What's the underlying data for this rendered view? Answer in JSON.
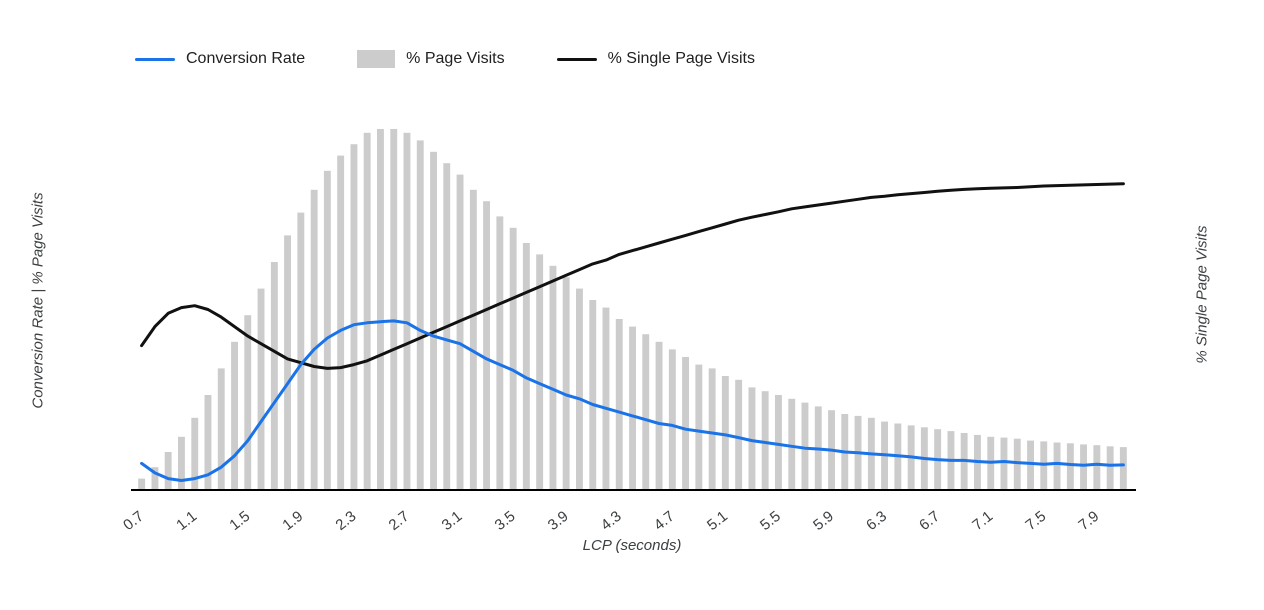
{
  "legend": {
    "items": [
      {
        "label": "Conversion Rate",
        "type": "line",
        "color": "#1a73e8"
      },
      {
        "label": "% Page Visits",
        "type": "bar",
        "color": "#cccccc"
      },
      {
        "label": "% Single Page Visits",
        "type": "line",
        "color": "#111111"
      }
    ]
  },
  "axes": {
    "x_label": "LCP (seconds)",
    "y_left_label": "Conversion Rate | % Page Visits",
    "y_right_label": "% Single Page Visits"
  },
  "chart_data": {
    "type": "bar",
    "subtype": "combo-bar-and-lines",
    "x_start": 0.7,
    "x_step": 0.1,
    "x_tick_labels": [
      "0.7",
      "1.1",
      "1.5",
      "1.9",
      "2.3",
      "2.7",
      "3.1",
      "3.5",
      "3.9",
      "4.3",
      "4.7",
      "5.1",
      "5.5",
      "5.9",
      "6.3",
      "6.7",
      "7.1",
      "7.5",
      "7.9"
    ],
    "xlabel": "LCP (seconds)",
    "ylabel_left": "Conversion Rate | % Page Visits",
    "ylabel_right": "% Single Page Visits",
    "ylim": [
      0,
      100
    ],
    "grid": false,
    "legend_position": "top-left",
    "value_units": "percent of plot height (no numeric y ticks shown)",
    "series": [
      {
        "name": "% Page Visits",
        "type": "bar",
        "color": "#cccccc",
        "values": [
          3,
          6,
          10,
          14,
          19,
          25,
          32,
          39,
          46,
          53,
          60,
          67,
          73,
          79,
          84,
          88,
          91,
          94,
          95,
          95,
          94,
          92,
          89,
          86,
          83,
          79,
          76,
          72,
          69,
          65,
          62,
          59,
          56,
          53,
          50,
          48,
          45,
          43,
          41,
          39,
          37,
          35,
          33,
          32,
          30,
          29,
          27,
          26,
          25,
          24,
          23,
          22,
          21,
          20,
          19.5,
          19,
          18,
          17.5,
          17,
          16.5,
          16,
          15.5,
          15,
          14.5,
          14,
          13.8,
          13.5,
          13,
          12.8,
          12.5,
          12.3,
          12,
          11.8,
          11.5,
          11.3
        ]
      },
      {
        "name": "Conversion Rate",
        "type": "line",
        "color": "#1a73e8",
        "values": [
          7,
          4.5,
          3,
          2.5,
          3,
          4,
          6,
          9,
          13,
          18,
          23,
          28,
          33,
          37,
          40,
          42,
          43.5,
          44,
          44.3,
          44.5,
          44,
          42,
          40.5,
          39.5,
          38.5,
          36.5,
          34.5,
          33,
          31.5,
          29.5,
          28,
          26.5,
          25,
          24,
          22.5,
          21.5,
          20.5,
          19.5,
          18.5,
          17.5,
          17,
          16,
          15.5,
          15,
          14.5,
          13.8,
          13,
          12.5,
          12,
          11.5,
          11,
          10.8,
          10.5,
          10,
          9.8,
          9.5,
          9.3,
          9,
          8.7,
          8.3,
          8,
          7.8,
          7.8,
          7.5,
          7.3,
          7.5,
          7.2,
          7,
          6.8,
          7,
          6.7,
          6.5,
          6.8,
          6.5,
          6.6
        ]
      },
      {
        "name": "% Single Page Visits",
        "type": "line",
        "color": "#111111",
        "values": [
          38,
          43,
          46.5,
          48,
          48.5,
          47.5,
          45.5,
          43,
          40.5,
          38.5,
          36.5,
          34.5,
          33.5,
          32.5,
          32,
          32.2,
          33,
          34,
          35.5,
          37,
          38.5,
          40,
          41.5,
          43,
          44.5,
          46,
          47.5,
          49,
          50.5,
          52,
          53.5,
          55,
          56.5,
          58,
          59.5,
          60.5,
          62,
          63,
          64,
          65,
          66,
          67,
          68,
          69,
          70,
          71,
          71.8,
          72.5,
          73.2,
          74,
          74.5,
          75,
          75.5,
          76,
          76.5,
          77,
          77.3,
          77.7,
          78,
          78.3,
          78.6,
          78.9,
          79.1,
          79.3,
          79.4,
          79.5,
          79.6,
          79.8,
          80,
          80.1,
          80.2,
          80.3,
          80.4,
          80.5,
          80.6
        ]
      }
    ]
  }
}
